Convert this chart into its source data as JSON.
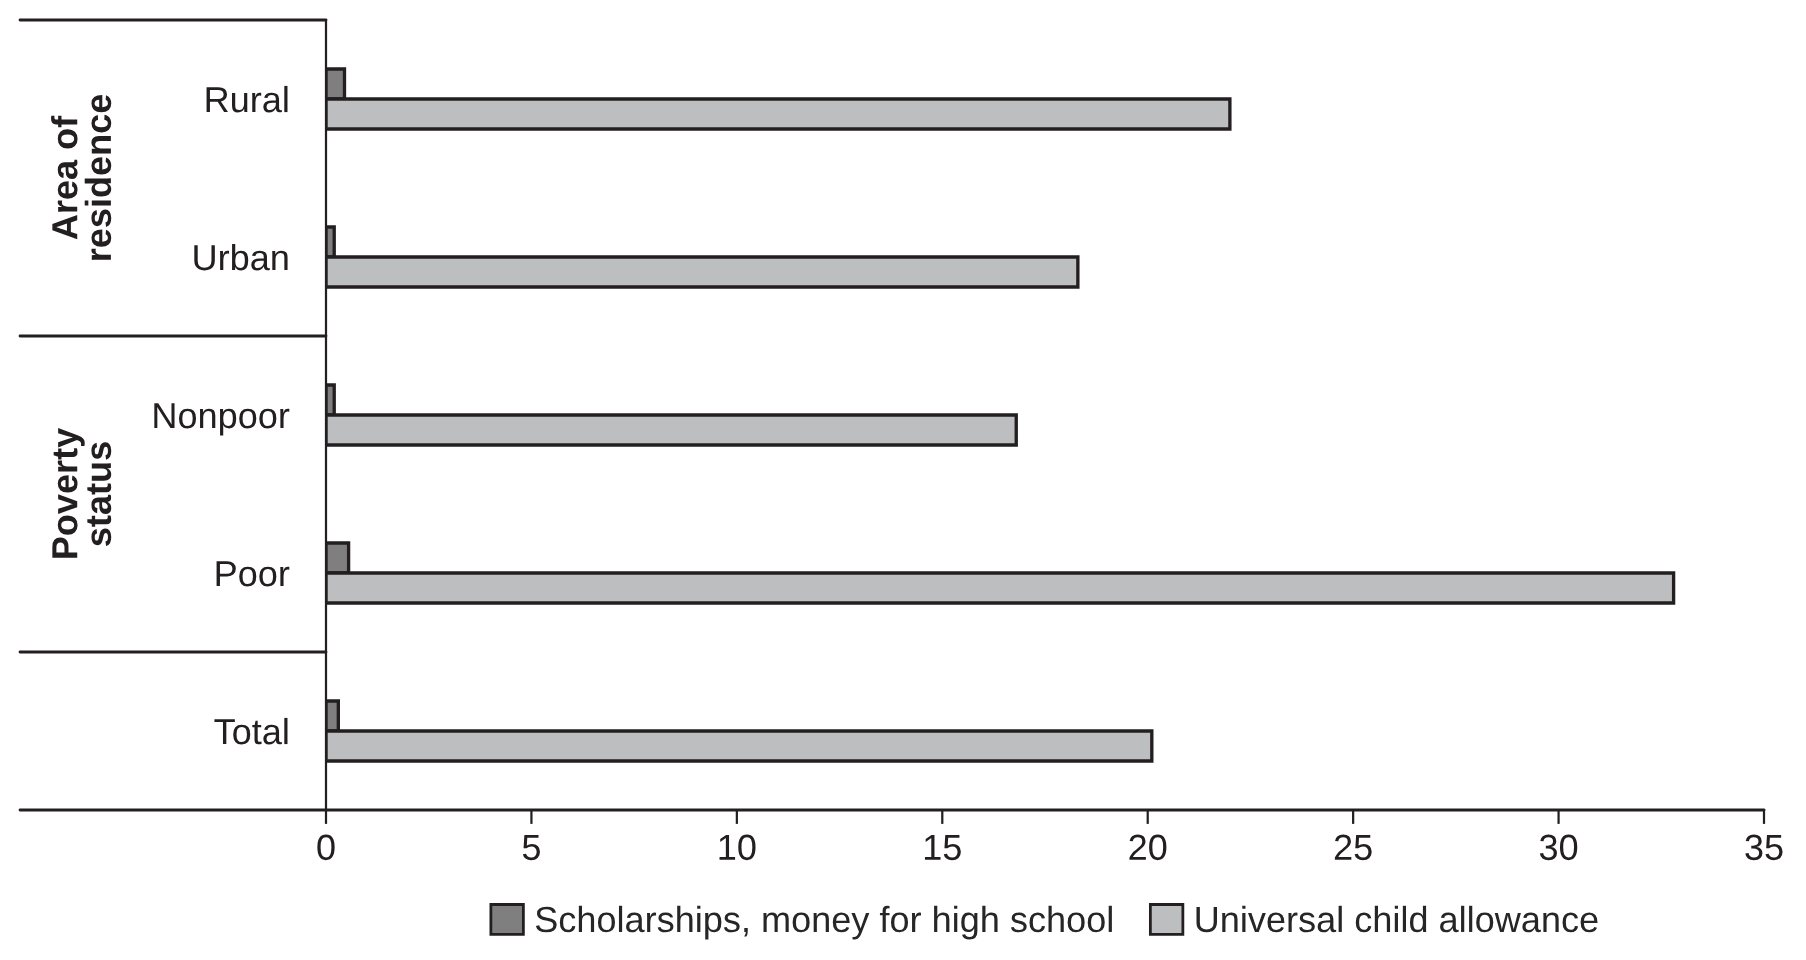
{
  "chart_data": {
    "type": "bar",
    "orientation": "horizontal",
    "categories": [
      "Rural",
      "Urban",
      "Nonpoor",
      "Poor",
      "Total"
    ],
    "series": [
      {
        "name": "Scholarships, money for high school",
        "color": "#7f7f7f",
        "values": [
          0.45,
          0.2,
          0.2,
          0.55,
          0.3
        ]
      },
      {
        "name": "Universal child allowance",
        "color": "#bdbec0",
        "values": [
          22,
          18.3,
          16.8,
          32.8,
          20.1
        ]
      }
    ],
    "xlim": [
      0,
      35
    ],
    "xticks": [
      0,
      5,
      10,
      15,
      20,
      25,
      30,
      35
    ],
    "annotations": [
      "Area of\nresidence",
      "Poverty\nstatus"
    ],
    "legend": "bottom",
    "grid": false
  }
}
